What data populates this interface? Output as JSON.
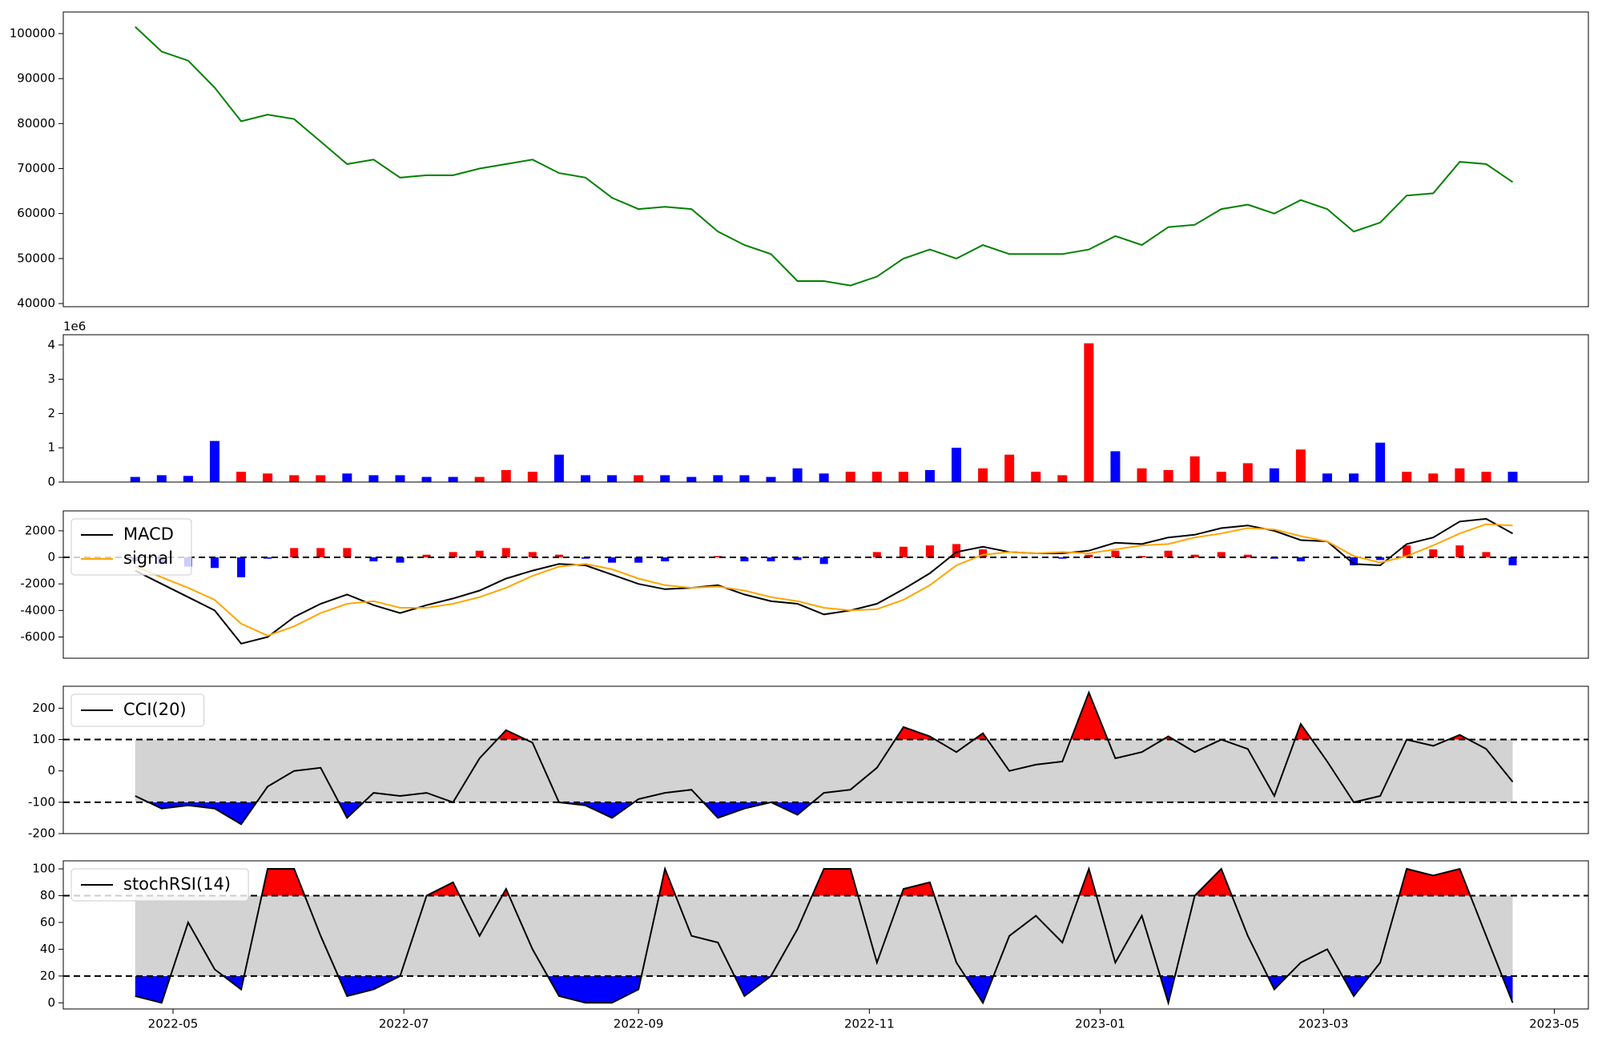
{
  "chart_data": {
    "type": "panels",
    "x": [
      "2022-04-21",
      "2022-04-28",
      "2022-05-05",
      "2022-05-12",
      "2022-05-19",
      "2022-05-26",
      "2022-06-02",
      "2022-06-09",
      "2022-06-16",
      "2022-06-23",
      "2022-06-30",
      "2022-07-07",
      "2022-07-14",
      "2022-07-21",
      "2022-07-28",
      "2022-08-04",
      "2022-08-11",
      "2022-08-18",
      "2022-08-25",
      "2022-09-01",
      "2022-09-08",
      "2022-09-15",
      "2022-09-22",
      "2022-09-29",
      "2022-10-06",
      "2022-10-13",
      "2022-10-20",
      "2022-10-27",
      "2022-11-03",
      "2022-11-10",
      "2022-11-17",
      "2022-11-24",
      "2022-12-01",
      "2022-12-08",
      "2022-12-15",
      "2022-12-22",
      "2022-12-29",
      "2023-01-05",
      "2023-01-12",
      "2023-01-19",
      "2023-01-26",
      "2023-02-02",
      "2023-02-09",
      "2023-02-16",
      "2023-02-23",
      "2023-03-02",
      "2023-03-09",
      "2023-03-16",
      "2023-03-23",
      "2023-03-30",
      "2023-04-06",
      "2023-04-13",
      "2023-04-20"
    ],
    "xlim": [
      "2022-04-02",
      "2023-05-10"
    ],
    "xticks": [
      {
        "value": "2022-05-01",
        "label": "2022-05"
      },
      {
        "value": "2022-07-01",
        "label": "2022-07"
      },
      {
        "value": "2022-09-01",
        "label": "2022-09"
      },
      {
        "value": "2022-11-01",
        "label": "2022-11"
      },
      {
        "value": "2023-01-01",
        "label": "2023-01"
      },
      {
        "value": "2023-03-01",
        "label": "2023-03"
      },
      {
        "value": "2023-05-01",
        "label": "2023-05"
      }
    ],
    "panels": [
      {
        "type": "line",
        "series": [
          {
            "color": "#008000",
            "values": [
              101500,
              96000,
              94000,
              88000,
              80500,
              82000,
              81000,
              76000,
              71000,
              72000,
              68000,
              68500,
              68500,
              70000,
              71000,
              72000,
              69000,
              68000,
              63500,
              61000,
              61500,
              61000,
              56000,
              53000,
              51000,
              45000,
              45000,
              44000,
              46000,
              50000,
              52000,
              50000,
              53000,
              51000,
              51000,
              51000,
              52000,
              55000,
              53000,
              57000,
              57500,
              61000,
              62000,
              60000,
              63000,
              61000,
              56000,
              58000,
              64000,
              64500,
              71500,
              71000,
              67000
            ]
          }
        ],
        "ylim": [
          39300,
          104800
        ],
        "yticks": [
          40000,
          50000,
          60000,
          70000,
          80000,
          90000,
          100000
        ]
      },
      {
        "type": "bar",
        "offset_label": "1e6",
        "values": [
          0.15,
          0.2,
          0.18,
          1.2,
          0.3,
          0.25,
          0.2,
          0.2,
          0.25,
          0.2,
          0.2,
          0.15,
          0.15,
          0.15,
          0.35,
          0.3,
          0.8,
          0.2,
          0.2,
          0.2,
          0.2,
          0.15,
          0.2,
          0.2,
          0.15,
          0.4,
          0.25,
          0.3,
          0.3,
          0.3,
          0.35,
          1.0,
          0.4,
          0.8,
          0.3,
          0.2,
          4.05,
          0.9,
          0.4,
          0.35,
          0.75,
          0.3,
          0.55,
          0.4,
          0.95,
          0.25,
          0.25,
          1.15,
          0.3,
          0.25,
          0.4,
          0.3,
          0.3
        ],
        "colors": [
          "#0000ff",
          "#0000ff",
          "#0000ff",
          "#0000ff",
          "#ff0000",
          "#ff0000",
          "#ff0000",
          "#ff0000",
          "#0000ff",
          "#0000ff",
          "#0000ff",
          "#0000ff",
          "#0000ff",
          "#ff0000",
          "#ff0000",
          "#ff0000",
          "#0000ff",
          "#0000ff",
          "#0000ff",
          "#ff0000",
          "#0000ff",
          "#0000ff",
          "#0000ff",
          "#0000ff",
          "#0000ff",
          "#0000ff",
          "#0000ff",
          "#ff0000",
          "#ff0000",
          "#ff0000",
          "#0000ff",
          "#0000ff",
          "#ff0000",
          "#ff0000",
          "#ff0000",
          "#ff0000",
          "#ff0000",
          "#0000ff",
          "#ff0000",
          "#ff0000",
          "#ff0000",
          "#ff0000",
          "#ff0000",
          "#0000ff",
          "#ff0000",
          "#0000ff",
          "#0000ff",
          "#0000ff",
          "#ff0000",
          "#ff0000",
          "#ff0000",
          "#ff0000",
          "#0000ff"
        ],
        "ylim": [
          0,
          4.3
        ],
        "yticks": [
          0,
          1,
          2,
          3,
          4
        ]
      },
      {
        "type": "macd",
        "legend": "upper left",
        "series": [
          {
            "name": "MACD",
            "color": "#000000",
            "values": [
              -1000,
              -2000,
              -3000,
              -4000,
              -6500,
              -6000,
              -4500,
              -3500,
              -2800,
              -3600,
              -4200,
              -3600,
              -3100,
              -2500,
              -1600,
              -1000,
              -500,
              -600,
              -1300,
              -2000,
              -2400,
              -2300,
              -2100,
              -2800,
              -3300,
              -3500,
              -4300,
              -4000,
              -3500,
              -2400,
              -1200,
              400,
              800,
              400,
              300,
              300,
              500,
              1100,
              1000,
              1500,
              1700,
              2200,
              2400,
              2000,
              1300,
              1200,
              -500,
              -600,
              1000,
              1500,
              2700,
              2900,
              1800
            ]
          },
          {
            "name": "signal",
            "color": "#ffa500",
            "values": [
              -700,
              -1500,
              -2300,
              -3200,
              -5000,
              -5900,
              -5200,
              -4200,
              -3500,
              -3300,
              -3800,
              -3800,
              -3500,
              -3000,
              -2300,
              -1400,
              -700,
              -500,
              -900,
              -1600,
              -2100,
              -2300,
              -2200,
              -2500,
              -3000,
              -3300,
              -3800,
              -4000,
              -3900,
              -3200,
              -2100,
              -600,
              200,
              400,
              300,
              400,
              300,
              600,
              900,
              1000,
              1500,
              1800,
              2200,
              2100,
              1600,
              1200,
              100,
              -400,
              100,
              900,
              1800,
              2500,
              2400
            ]
          }
        ],
        "histogram": {
          "pos_color": "#ff0000",
          "neg_color": "#0000ff",
          "values": [
            -300,
            -500,
            -700,
            -800,
            -1500,
            -100,
            700,
            700,
            700,
            -300,
            -400,
            200,
            400,
            500,
            700,
            400,
            200,
            -100,
            -400,
            -400,
            -300,
            0,
            100,
            -300,
            -300,
            -200,
            -500,
            0,
            400,
            800,
            900,
            1000,
            600,
            0,
            0,
            -100,
            200,
            500,
            100,
            500,
            200,
            400,
            200,
            -100,
            -300,
            0,
            -600,
            -200,
            900,
            600,
            900,
            400,
            -600
          ]
        },
        "hlines": [
          0
        ],
        "ylim": [
          -7600,
          3500
        ],
        "yticks": [
          -6000,
          -4000,
          -2000,
          0,
          2000
        ]
      },
      {
        "type": "band",
        "legend": "upper left",
        "series": [
          {
            "name": "CCI(20)",
            "color": "#000000",
            "values": [
              -80,
              -120,
              -110,
              -120,
              -170,
              -50,
              0,
              10,
              -150,
              -70,
              -80,
              -70,
              -100,
              40,
              130,
              90,
              -100,
              -110,
              -150,
              -90,
              -70,
              -60,
              -150,
              -120,
              -100,
              -140,
              -70,
              -60,
              10,
              140,
              110,
              60,
              120,
              0,
              20,
              30,
              250,
              40,
              60,
              110,
              60,
              100,
              70,
              -80,
              150,
              30,
              -100,
              -80,
              100,
              80,
              115,
              70,
              -35
            ]
          }
        ],
        "bands": [
          -100,
          100
        ],
        "band_color": "#d3d3d3",
        "above_color": "#ff0000",
        "below_color": "#0000ff",
        "ylim": [
          -200,
          270
        ],
        "yticks": [
          -200,
          -100,
          0,
          100,
          200
        ]
      },
      {
        "type": "band",
        "legend": "upper left",
        "series": [
          {
            "name": "stochRSI(14)",
            "color": "#000000",
            "values": [
              5,
              0,
              60,
              25,
              10,
              100,
              100,
              50,
              5,
              10,
              20,
              80,
              90,
              50,
              85,
              40,
              5,
              0,
              0,
              10,
              100,
              50,
              45,
              5,
              20,
              55,
              100,
              100,
              30,
              85,
              90,
              30,
              0,
              50,
              65,
              45,
              100,
              30,
              65,
              0,
              80,
              100,
              50,
              10,
              30,
              40,
              5,
              30,
              100,
              95,
              100,
              50,
              0
            ]
          }
        ],
        "bands": [
          20,
          80
        ],
        "band_color": "#d3d3d3",
        "above_color": "#ff0000",
        "below_color": "#0000ff",
        "ylim": [
          -4.6,
          106
        ],
        "yticks": [
          0,
          20,
          40,
          60,
          80,
          100
        ]
      }
    ]
  }
}
